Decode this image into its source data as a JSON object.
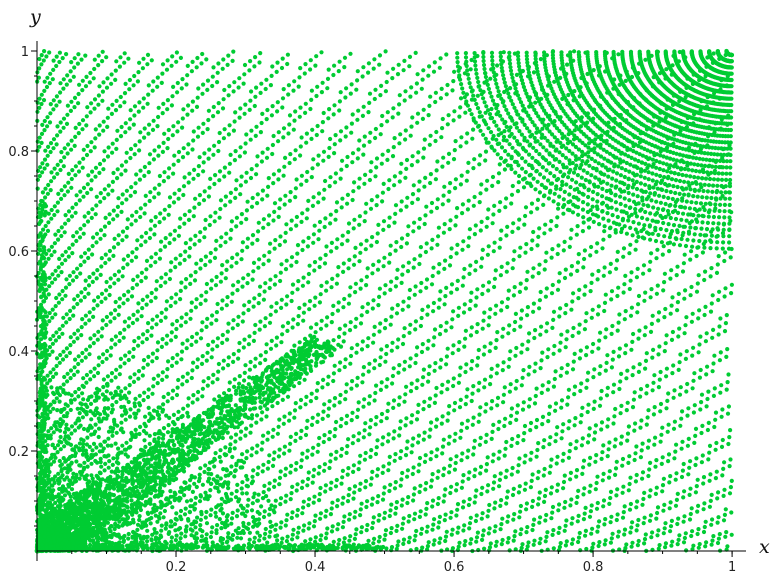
{
  "chart_data": {
    "type": "scatter",
    "title": "",
    "xlabel": "x",
    "ylabel": "y",
    "xlim": [
      0,
      1.02
    ],
    "ylim": [
      0,
      1.02
    ],
    "x_ticks": [
      0.2,
      0.4,
      0.6,
      0.8,
      1
    ],
    "x_tick_labels": [
      "0.2",
      "0.4",
      "0.6",
      "0.8",
      "1"
    ],
    "y_ticks": [
      0.2,
      0.4,
      0.6,
      0.8,
      1
    ],
    "y_tick_labels": [
      "0.2",
      "0.4",
      "0.6",
      "0.8",
      "1"
    ],
    "grid": false,
    "legend": "none",
    "marker": "dot",
    "point_color": "#00cc33",
    "series": [
      {
        "description_of_points": "dense cloud of several thousand points covering the unit square; densest near the origin and along the diagonal y = x for x < 0.35; radial fan of point-rows converging at (1, 1)",
        "x": [
          0.02,
          0.05,
          0.08,
          0.1,
          0.12,
          0.15,
          0.18,
          0.2,
          0.22,
          0.25,
          0.28,
          0.3,
          0.35,
          0.4,
          0.5,
          0.6,
          0.7,
          0.8,
          0.9,
          0.95,
          0.98,
          1.0
        ],
        "y": [
          0.02,
          0.05,
          0.08,
          0.1,
          0.12,
          0.15,
          0.18,
          0.2,
          0.22,
          0.25,
          0.28,
          0.3,
          0.33,
          0.38,
          0.5,
          0.6,
          0.7,
          0.8,
          0.9,
          0.95,
          0.98,
          1.0
        ]
      }
    ]
  }
}
